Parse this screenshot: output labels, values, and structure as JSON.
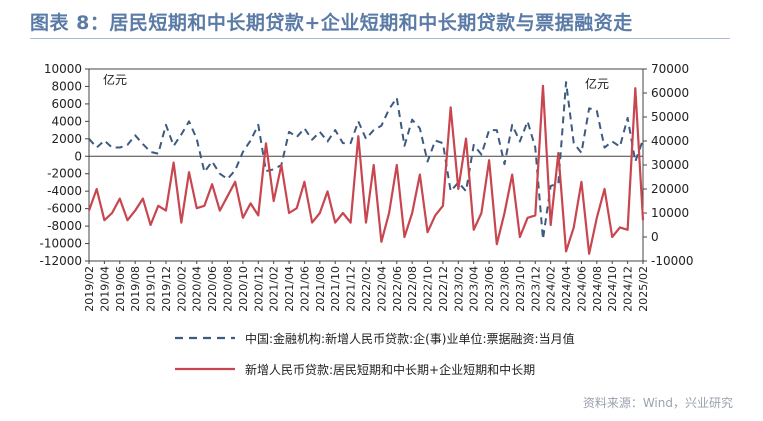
{
  "title": "图表 8：居民短期和中长期贷款+企业短期和中长期贷款与票据融资走",
  "source": "资料来源：Wind，兴业研究",
  "chart_data": {
    "type": "line",
    "left_unit": "亿元",
    "right_unit": "亿元",
    "ylim_left": [
      -12000,
      10000
    ],
    "yticks_left": [
      10000,
      8000,
      6000,
      4000,
      2000,
      0,
      -2000,
      -4000,
      -6000,
      -8000,
      -10000,
      -12000
    ],
    "ylim_right": [
      -10000,
      70000
    ],
    "yticks_right": [
      70000,
      60000,
      50000,
      40000,
      30000,
      20000,
      10000,
      0,
      -10000
    ],
    "x": [
      "2019/02",
      "2019/03",
      "2019/04",
      "2019/05",
      "2019/06",
      "2019/07",
      "2019/08",
      "2019/09",
      "2019/10",
      "2019/11",
      "2019/12",
      "2020/01",
      "2020/02",
      "2020/03",
      "2020/04",
      "2020/05",
      "2020/06",
      "2020/07",
      "2020/08",
      "2020/09",
      "2020/10",
      "2020/11",
      "2020/12",
      "2021/01",
      "2021/02",
      "2021/03",
      "2021/04",
      "2021/05",
      "2021/06",
      "2021/07",
      "2021/08",
      "2021/09",
      "2021/10",
      "2021/11",
      "2021/12",
      "2022/01",
      "2022/02",
      "2022/03",
      "2022/04",
      "2022/05",
      "2022/06",
      "2022/07",
      "2022/08",
      "2022/09",
      "2022/10",
      "2022/11",
      "2022/12",
      "2023/01",
      "2023/02",
      "2023/03",
      "2023/04",
      "2023/05",
      "2023/06",
      "2023/07",
      "2023/08",
      "2023/09",
      "2023/10",
      "2023/11",
      "2023/12",
      "2024/01",
      "2024/02",
      "2024/03",
      "2024/04",
      "2024/05",
      "2024/06",
      "2024/07",
      "2024/08",
      "2024/09",
      "2024/10",
      "2024/11",
      "2024/12",
      "2025/01",
      "2025/02"
    ],
    "xtick_labels": [
      "2019/02",
      "2019/04",
      "2019/06",
      "2019/08",
      "2019/10",
      "2019/12",
      "2020/02",
      "2020/04",
      "2020/06",
      "2020/08",
      "2020/10",
      "2020/12",
      "2021/02",
      "2021/04",
      "2021/06",
      "2021/08",
      "2021/10",
      "2021/12",
      "2022/02",
      "2022/04",
      "2022/06",
      "2022/08",
      "2022/10",
      "2022/12",
      "2023/02",
      "2023/04",
      "2023/06",
      "2023/08",
      "2023/10",
      "2023/12",
      "2024/02",
      "2024/04",
      "2024/06",
      "2024/08",
      "2024/10",
      "2024/12",
      "2025/02"
    ],
    "series": [
      {
        "name": "中国:金融机构:新增人民币贷款:企(事)业单位:票据融资:当月值",
        "axis": "left",
        "color": "#3d5a80",
        "style": "dashed",
        "values": [
          2000,
          1000,
          1800,
          1000,
          1000,
          1300,
          2400,
          1400,
          500,
          300,
          3600,
          1200,
          2500,
          4000,
          2000,
          -1800,
          -600,
          -2000,
          -2600,
          -1600,
          500,
          1800,
          3600,
          -1700,
          -1500,
          -1000,
          2800,
          2200,
          3200,
          1900,
          2800,
          1700,
          3000,
          1500,
          1500,
          4000,
          2000,
          3000,
          3500,
          5400,
          6700,
          1200,
          4200,
          3200,
          -600,
          1800,
          1500,
          -4000,
          -3000,
          -4000,
          1300,
          200,
          3000,
          3000,
          -900,
          3600,
          1700,
          4000,
          1000,
          -9500,
          -3400,
          -3100,
          8500,
          1500,
          400,
          5500,
          5200,
          1000,
          1700,
          1100,
          4400,
          -600,
          1900
        ]
      },
      {
        "name": "新增人民币贷款:居民短期和中长期+企业短期和中长期",
        "axis": "right",
        "color": "#c8464f",
        "style": "solid",
        "values": [
          11000,
          20000,
          7000,
          10000,
          16000,
          7000,
          11000,
          16000,
          5000,
          13000,
          11000,
          31000,
          6000,
          27000,
          12000,
          13000,
          22000,
          11000,
          17000,
          23000,
          8000,
          14000,
          9000,
          39000,
          15000,
          30000,
          10000,
          12000,
          23000,
          6000,
          10000,
          19000,
          6000,
          10000,
          6000,
          42000,
          6000,
          30000,
          -2000,
          10000,
          30000,
          0,
          10000,
          26000,
          2000,
          9000,
          13000,
          54000,
          20000,
          41000,
          3000,
          10000,
          32000,
          -3000,
          10000,
          26000,
          0,
          8000,
          9000,
          63000,
          5000,
          35000,
          -6000,
          4000,
          23000,
          -7000,
          8000,
          20000,
          0,
          4000,
          3000,
          62000,
          7000
        ]
      }
    ]
  }
}
